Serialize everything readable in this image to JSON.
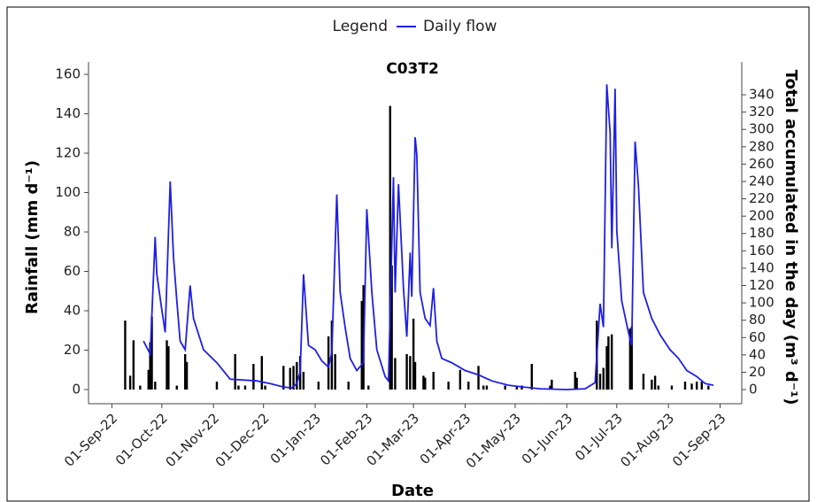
{
  "chart_data": {
    "type": "combo",
    "title": "C03T2",
    "legend_title": "Legend",
    "xlabel": "Date",
    "ylabel": "Rainfall (mm d⁻¹)",
    "y2label": "Total accumulated in the day (m³ d⁻¹)",
    "xlim": [
      "2022-08-18",
      "2023-09-14"
    ],
    "xticks": [
      {
        "value": "2022-09-01",
        "label": "01-Sep-22"
      },
      {
        "value": "2022-10-01",
        "label": "01-Oct-22"
      },
      {
        "value": "2022-11-01",
        "label": "01-Nov-22"
      },
      {
        "value": "2022-12-01",
        "label": "01-Dec-22"
      },
      {
        "value": "2023-01-01",
        "label": "01-Jan-23"
      },
      {
        "value": "2023-02-01",
        "label": "01-Feb-23"
      },
      {
        "value": "2023-03-01",
        "label": "01-Mar-23"
      },
      {
        "value": "2023-04-01",
        "label": "01-Apr-23"
      },
      {
        "value": "2023-05-01",
        "label": "01-May-23"
      },
      {
        "value": "2023-06-01",
        "label": "01-Jun-23"
      },
      {
        "value": "2023-07-01",
        "label": "01-Jul-23"
      },
      {
        "value": "2023-08-01",
        "label": "01-Aug-23"
      },
      {
        "value": "2023-09-01",
        "label": "01-Sep-23"
      }
    ],
    "ylim": [
      -7.2,
      166.3
    ],
    "yticks": [
      0,
      20,
      40,
      60,
      80,
      100,
      120,
      140,
      160
    ],
    "y2lim": [
      -16.3,
      377.8
    ],
    "y2ticks": [
      0,
      20,
      40,
      60,
      80,
      100,
      120,
      140,
      160,
      180,
      200,
      220,
      240,
      260,
      280,
      300,
      320,
      340
    ],
    "series": [
      {
        "type": "bar",
        "color": "#000000",
        "x": [
          "2022-09-09",
          "2022-09-12",
          "2022-09-14",
          "2022-09-18",
          "2022-09-23",
          "2022-09-24",
          "2022-09-25",
          "2022-09-27",
          "2022-10-04",
          "2022-10-05",
          "2022-10-10",
          "2022-10-15",
          "2022-10-16",
          "2022-11-03",
          "2022-11-14",
          "2022-11-16",
          "2022-11-20",
          "2022-11-25",
          "2022-11-30",
          "2022-12-02",
          "2022-12-13",
          "2022-12-17",
          "2022-12-19",
          "2022-12-21",
          "2022-12-23",
          "2022-12-25",
          "2023-01-03",
          "2023-01-09",
          "2023-01-11",
          "2023-01-13",
          "2023-01-21",
          "2023-01-29",
          "2023-01-30",
          "2023-02-02",
          "2023-02-15",
          "2023-02-16",
          "2023-02-18",
          "2023-02-25",
          "2023-02-27",
          "2023-03-01",
          "2023-03-02",
          "2023-03-07",
          "2023-03-08",
          "2023-03-13",
          "2023-03-22",
          "2023-03-29",
          "2023-04-03",
          "2023-04-09",
          "2023-04-12",
          "2023-04-14",
          "2023-04-25",
          "2023-05-02",
          "2023-05-05",
          "2023-05-11",
          "2023-05-22",
          "2023-05-23",
          "2023-06-06",
          "2023-06-07",
          "2023-06-19",
          "2023-06-21",
          "2023-06-23",
          "2023-06-25",
          "2023-06-26",
          "2023-06-28",
          "2023-07-09",
          "2023-07-10",
          "2023-07-17",
          "2023-07-22",
          "2023-07-24",
          "2023-07-26",
          "2023-08-03",
          "2023-08-11",
          "2023-08-15",
          "2023-08-18",
          "2023-08-21",
          "2023-08-25"
        ],
        "values": [
          35,
          7,
          25,
          2,
          10,
          24,
          37,
          4,
          25,
          22,
          2,
          18,
          14,
          4,
          18,
          2,
          2,
          13,
          17,
          2,
          12,
          11,
          12,
          14,
          17,
          9,
          4,
          27,
          35,
          18,
          4,
          45,
          53,
          2,
          144,
          63,
          16,
          18,
          17,
          36,
          14,
          7,
          6,
          9,
          4,
          10,
          4,
          12,
          2,
          2,
          2,
          2,
          2,
          13,
          2,
          5,
          9,
          6,
          35,
          8,
          11,
          22,
          27,
          28,
          31,
          32,
          8,
          5,
          7,
          2,
          2,
          4,
          3,
          4,
          4,
          2
        ]
      },
      {
        "name": "Daily flow",
        "type": "line",
        "axis": "y2",
        "color": "#1f1fe6",
        "x": [
          "2022-09-20",
          "2022-09-24",
          "2022-09-27",
          "2022-09-28",
          "2022-10-01",
          "2022-10-03",
          "2022-10-06",
          "2022-10-08",
          "2022-10-10",
          "2022-10-12",
          "2022-10-15",
          "2022-10-18",
          "2022-10-20",
          "2022-10-26",
          "2022-11-03",
          "2022-11-11",
          "2022-11-27",
          "2022-12-05",
          "2022-12-13",
          "2022-12-18",
          "2022-12-21",
          "2022-12-23",
          "2022-12-25",
          "2022-12-28",
          "2023-01-01",
          "2023-01-05",
          "2023-01-09",
          "2023-01-11",
          "2023-01-14",
          "2023-01-16",
          "2023-01-19",
          "2023-01-22",
          "2023-01-26",
          "2023-01-30",
          "2023-02-01",
          "2023-02-04",
          "2023-02-07",
          "2023-02-12",
          "2023-02-14",
          "2023-02-17",
          "2023-02-18",
          "2023-02-20",
          "2023-02-23",
          "2023-02-25",
          "2023-02-27",
          "2023-02-28",
          "2023-03-02",
          "2023-03-03",
          "2023-03-05",
          "2023-03-08",
          "2023-03-11",
          "2023-03-13",
          "2023-03-15",
          "2023-03-18",
          "2023-03-24",
          "2023-04-01",
          "2023-04-09",
          "2023-04-17",
          "2023-04-27",
          "2023-05-06",
          "2023-05-16",
          "2023-06-01",
          "2023-06-12",
          "2023-06-18",
          "2023-06-21",
          "2023-06-23",
          "2023-06-25",
          "2023-06-27",
          "2023-06-28",
          "2023-06-30",
          "2023-07-01",
          "2023-07-04",
          "2023-07-08",
          "2023-07-10",
          "2023-07-12",
          "2023-07-14",
          "2023-07-17",
          "2023-07-22",
          "2023-07-27",
          "2023-08-02",
          "2023-08-07",
          "2023-08-12",
          "2023-08-18",
          "2023-08-23",
          "2023-08-28"
        ],
        "values": [
          56,
          41,
          176,
          133,
          92,
          66,
          240,
          153,
          102,
          56,
          46,
          120,
          82,
          46,
          31,
          12,
          10,
          7,
          3,
          2,
          7,
          20,
          133,
          51,
          46,
          33,
          26,
          43,
          225,
          112,
          72,
          36,
          22,
          31,
          208,
          112,
          46,
          15,
          10,
          245,
          112,
          237,
          117,
          61,
          158,
          107,
          291,
          271,
          112,
          82,
          74,
          117,
          56,
          36,
          31,
          22,
          17,
          10,
          5,
          3,
          1,
          0,
          1,
          8,
          99,
          72,
          352,
          296,
          163,
          347,
          184,
          102,
          66,
          51,
          286,
          235,
          112,
          82,
          63,
          46,
          36,
          22,
          15,
          7,
          5
        ]
      }
    ]
  }
}
